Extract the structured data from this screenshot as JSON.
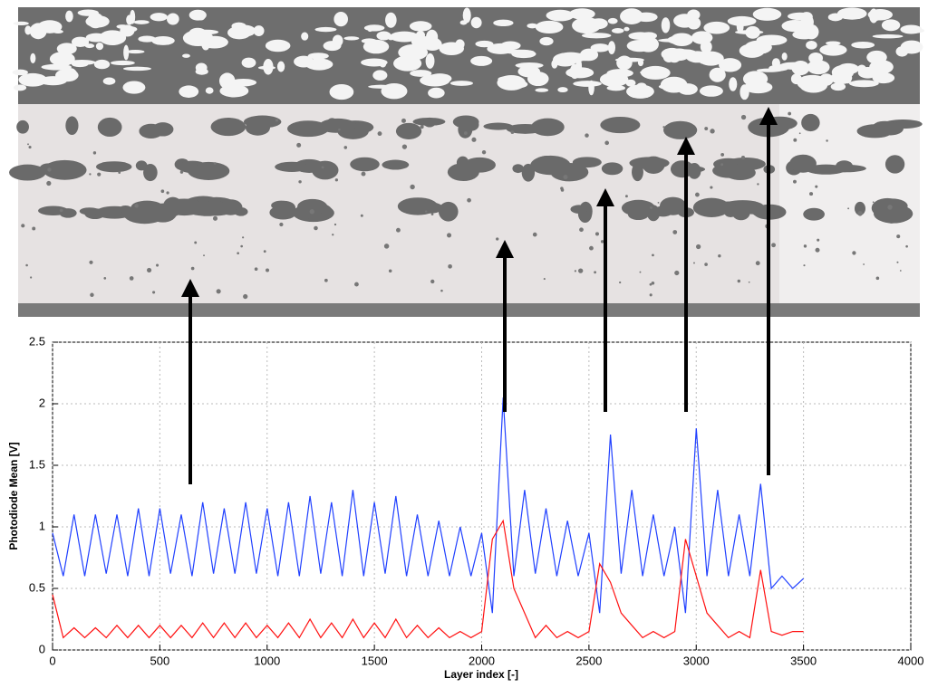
{
  "chart_data": {
    "type": "line",
    "x_label": "Layer index [-]",
    "y_label": "Photodiode Mean [V]",
    "x": [
      0,
      50,
      100,
      150,
      200,
      250,
      300,
      350,
      400,
      450,
      500,
      550,
      600,
      650,
      700,
      750,
      800,
      850,
      900,
      950,
      1000,
      1050,
      1100,
      1150,
      1200,
      1250,
      1300,
      1350,
      1400,
      1450,
      1500,
      1550,
      1600,
      1650,
      1700,
      1750,
      1800,
      1850,
      1900,
      1950,
      2000,
      2050,
      2100,
      2150,
      2200,
      2250,
      2300,
      2350,
      2400,
      2450,
      2500,
      2550,
      2600,
      2650,
      2700,
      2750,
      2800,
      2850,
      2900,
      2950,
      3000,
      3050,
      3100,
      3150,
      3200,
      3250,
      3300,
      3350,
      3400,
      3450,
      3500
    ],
    "series": [
      {
        "color": "#2040ff",
        "values": [
          0.95,
          0.6,
          1.1,
          0.6,
          1.1,
          0.62,
          1.1,
          0.6,
          1.15,
          0.6,
          1.15,
          0.62,
          1.1,
          0.6,
          1.2,
          0.62,
          1.15,
          0.62,
          1.2,
          0.62,
          1.15,
          0.6,
          1.2,
          0.6,
          1.25,
          0.62,
          1.2,
          0.6,
          1.3,
          0.6,
          1.2,
          0.62,
          1.25,
          0.6,
          1.1,
          0.6,
          1.05,
          0.6,
          1.0,
          0.6,
          0.95,
          0.3,
          2.05,
          0.6,
          1.3,
          0.62,
          1.15,
          0.6,
          1.05,
          0.6,
          0.95,
          0.3,
          1.75,
          0.62,
          1.3,
          0.6,
          1.1,
          0.6,
          1.0,
          0.3,
          1.8,
          0.6,
          1.3,
          0.6,
          1.1,
          0.6,
          1.35,
          0.5,
          0.6,
          0.5,
          0.58
        ]
      },
      {
        "color": "#ff1010",
        "values": [
          0.45,
          0.1,
          0.18,
          0.1,
          0.18,
          0.1,
          0.2,
          0.1,
          0.2,
          0.1,
          0.2,
          0.1,
          0.2,
          0.1,
          0.22,
          0.1,
          0.22,
          0.1,
          0.22,
          0.1,
          0.2,
          0.1,
          0.22,
          0.1,
          0.25,
          0.1,
          0.22,
          0.1,
          0.25,
          0.1,
          0.22,
          0.1,
          0.25,
          0.1,
          0.2,
          0.1,
          0.18,
          0.1,
          0.15,
          0.1,
          0.15,
          0.9,
          1.05,
          0.5,
          0.3,
          0.1,
          0.2,
          0.1,
          0.15,
          0.1,
          0.15,
          0.7,
          0.55,
          0.3,
          0.2,
          0.1,
          0.15,
          0.1,
          0.15,
          0.9,
          0.6,
          0.3,
          0.2,
          0.1,
          0.15,
          0.1,
          0.65,
          0.15,
          0.12,
          0.15,
          0.15
        ]
      }
    ],
    "xlim": [
      0,
      4000
    ],
    "xticks": [
      0,
      500,
      1000,
      1500,
      2000,
      2500,
      3000,
      3500,
      4000
    ],
    "ylim": [
      0,
      2.5
    ],
    "yticks": [
      0,
      0.5,
      1,
      1.5,
      2,
      2.5
    ],
    "grid": true
  }
}
